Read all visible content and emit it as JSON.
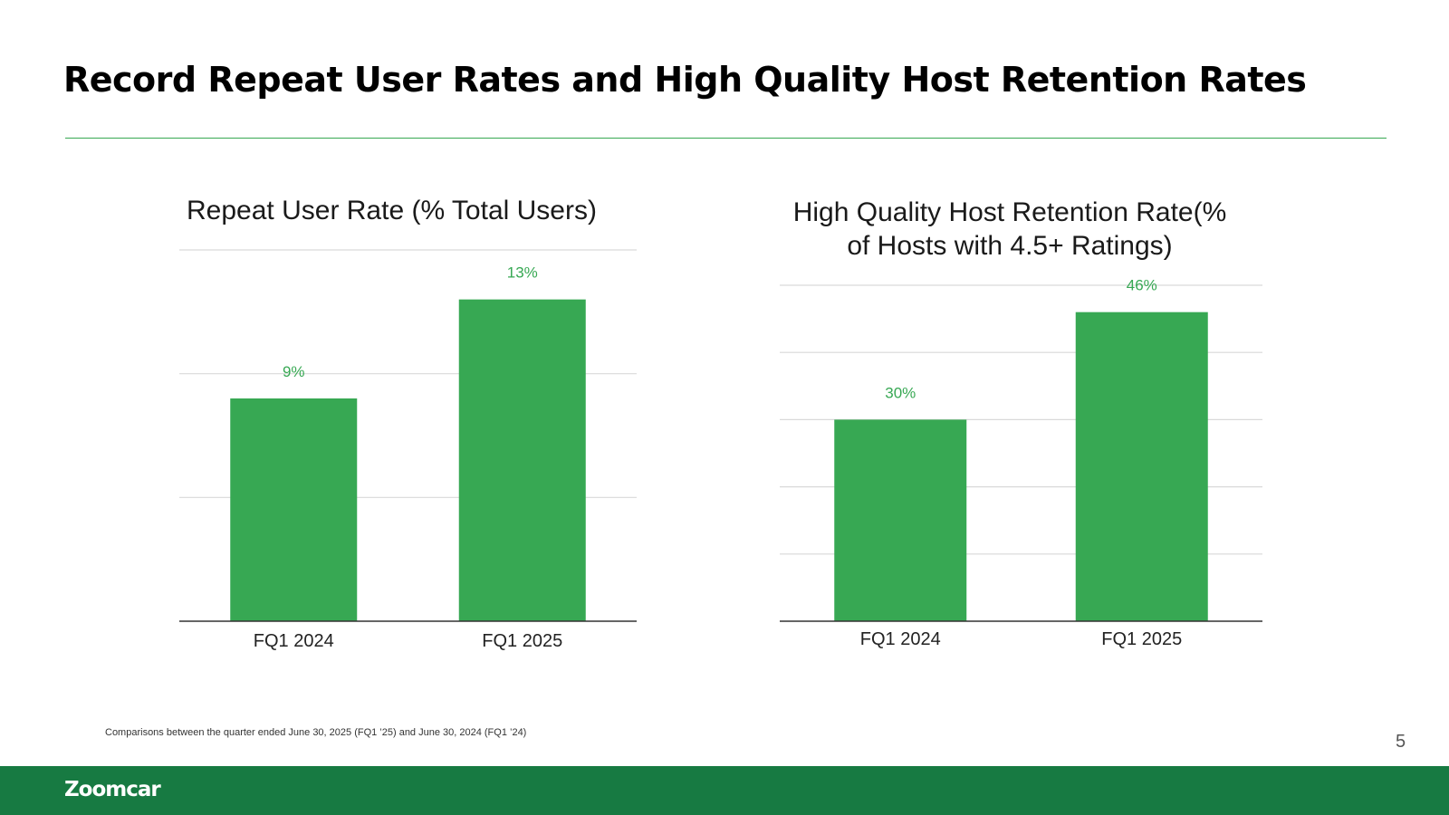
{
  "slide": {
    "title": "Record Repeat User Rates and High Quality Host Retention Rates",
    "footnote": "Comparisons between the quarter ended June 30, 2025 (FQ1 ’25) and June 30, 2024 (FQ1 ’24)",
    "page_number": "5",
    "brand": "Zoomcar"
  },
  "colors": {
    "bar": "#37a853",
    "label": "#37a853",
    "accent_line": "#37a853",
    "footer": "#177a42",
    "grid": "#d9d9d9",
    "axis": "#333333"
  },
  "chart_data": [
    {
      "type": "bar",
      "title": "Repeat User Rate (% Total Users)",
      "categories": [
        "FQ1 2024",
        "FQ1 2025"
      ],
      "values": [
        9,
        13
      ],
      "value_labels": [
        "9%",
        "13%"
      ],
      "xlabel": "",
      "ylabel": "",
      "ylim": [
        0,
        15
      ],
      "gridlines": [
        5,
        10,
        15
      ],
      "grid": true,
      "legend": "none"
    },
    {
      "type": "bar",
      "title": "High Quality Host Retention Rate(% of Hosts with 4.5+ Ratings)",
      "categories": [
        "FQ1 2024",
        "FQ1 2025"
      ],
      "values": [
        30,
        46
      ],
      "value_labels": [
        "30%",
        "46%"
      ],
      "xlabel": "",
      "ylabel": "",
      "ylim": [
        0,
        50
      ],
      "gridlines": [
        10,
        20,
        30,
        40,
        50
      ],
      "grid": true,
      "legend": "none"
    }
  ]
}
